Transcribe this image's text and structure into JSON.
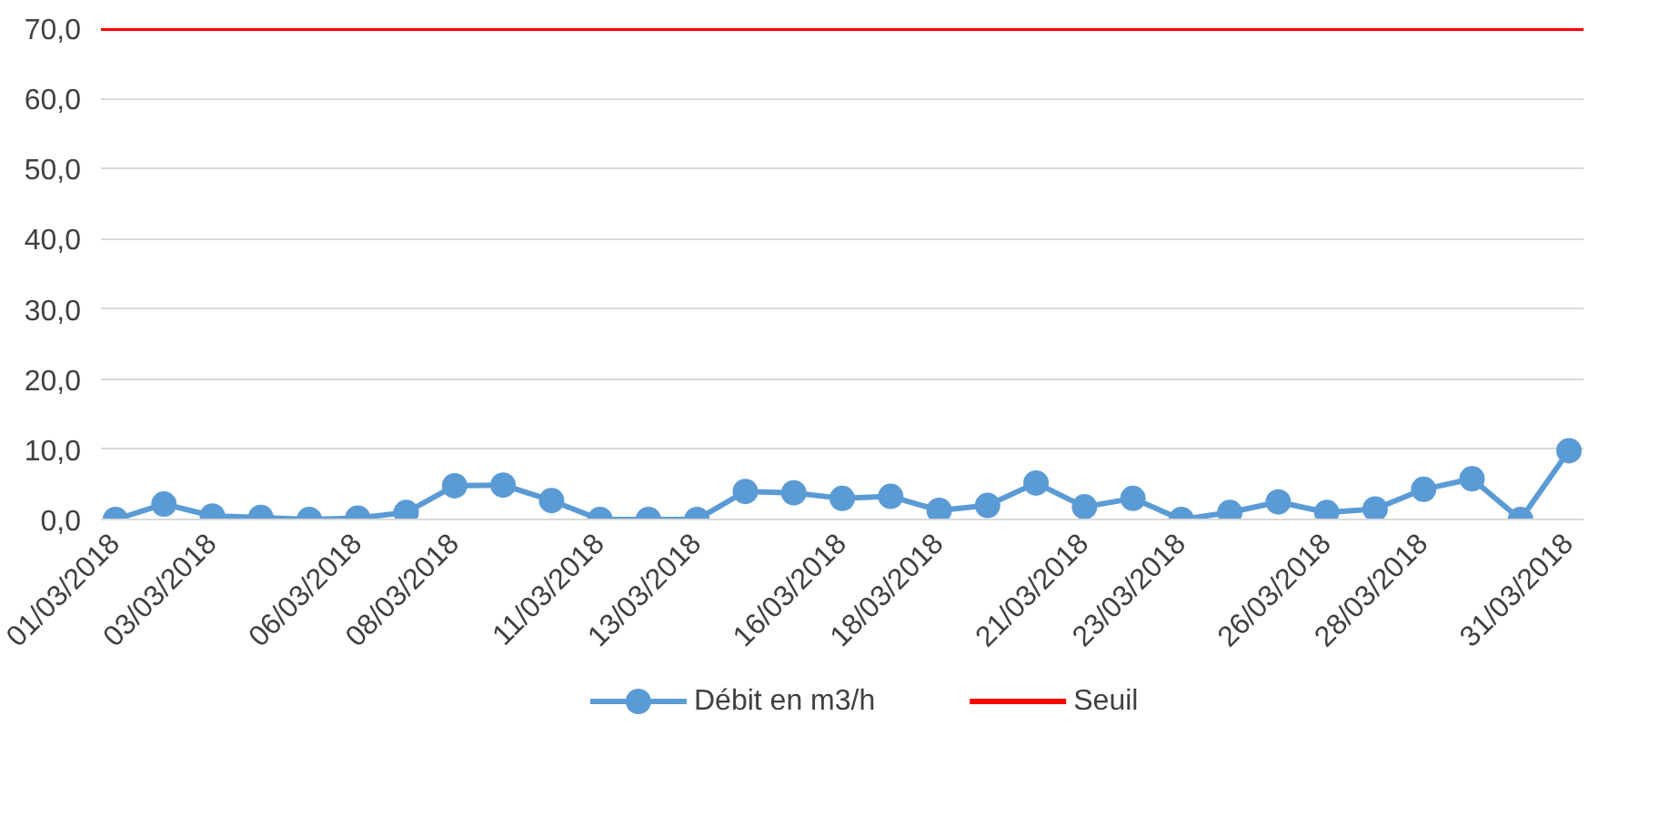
{
  "chart_data": {
    "type": "line",
    "categories": [
      "01/03/2018",
      null,
      "03/03/2018",
      null,
      null,
      "06/03/2018",
      null,
      "08/03/2018",
      null,
      null,
      "11/03/2018",
      null,
      "13/03/2018",
      null,
      null,
      "16/03/2018",
      null,
      "18/03/2018",
      null,
      null,
      "21/03/2018",
      null,
      "23/03/2018",
      null,
      null,
      "26/03/2018",
      null,
      "28/03/2018",
      null,
      null,
      "31/03/2018"
    ],
    "series": [
      {
        "name": "Débit en m3/h",
        "color": "#5b9bd5",
        "values": [
          0,
          2.2,
          0.5,
          0.3,
          0,
          0.2,
          1.0,
          4.8,
          4.9,
          2.7,
          0,
          0,
          0,
          4.0,
          3.8,
          3.0,
          3.3,
          1.3,
          2.0,
          5.2,
          1.8,
          3.0,
          0,
          1.0,
          2.5,
          1.0,
          1.5,
          4.3,
          5.8,
          0,
          9.8
        ]
      }
    ],
    "ref_lines": [
      {
        "axis": "y",
        "value": 70,
        "label": "Seuil",
        "color": "#ff0000"
      }
    ],
    "ylim": [
      0,
      70
    ],
    "yticks": [
      {
        "value": 0,
        "label": "0,0"
      },
      {
        "value": 10,
        "label": "10,0"
      },
      {
        "value": 20,
        "label": "20,0"
      },
      {
        "value": 30,
        "label": "30,0"
      },
      {
        "value": 40,
        "label": "40,0"
      },
      {
        "value": 50,
        "label": "50,0"
      },
      {
        "value": 60,
        "label": "60,0"
      },
      {
        "value": 70,
        "label": "70,0"
      }
    ],
    "grid": "y",
    "legend": "bottom",
    "marker": "circle",
    "line_style": "solid"
  }
}
